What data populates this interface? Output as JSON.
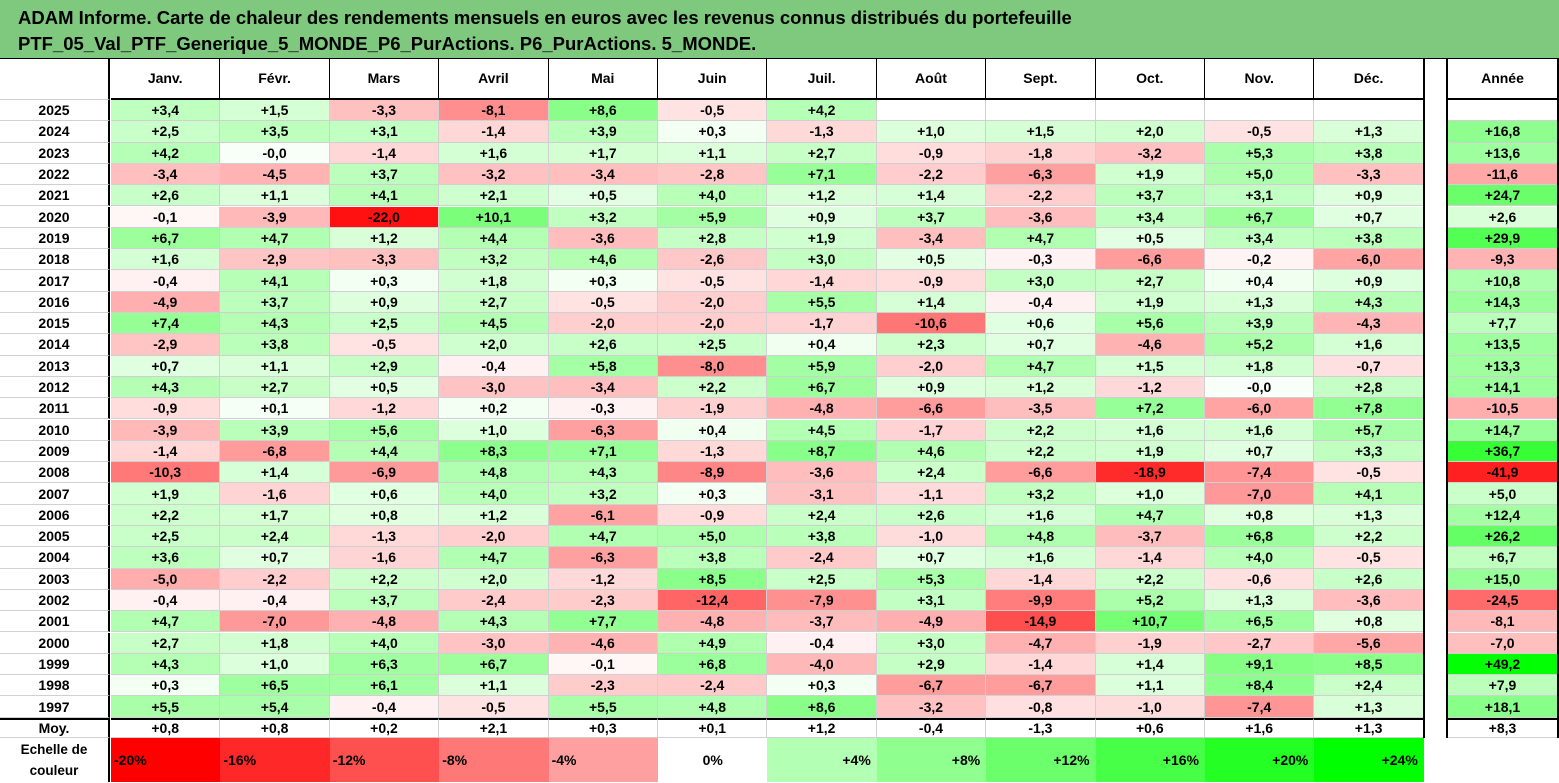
{
  "title": {
    "line1": "ADAM Informe. Carte de chaleur des rendements mensuels en euros avec les revenus connus distribués du portefeuille",
    "line2": "PTF_05_Val_PTF_Generique_5_MONDE_P6_PurActions. P6_PurActions. 5_MONDE."
  },
  "chart_data": {
    "type": "heatmap",
    "months": [
      "Janv.",
      "Févr.",
      "Mars",
      "Avril",
      "Mai",
      "Juin",
      "Juil.",
      "Août",
      "Sept.",
      "Oct.",
      "Nov.",
      "Déc."
    ],
    "annual_label": "Année",
    "rows": [
      {
        "year": "2025",
        "values": [
          "+3,4",
          "+1,5",
          "-3,3",
          "-8,1",
          "+8,6",
          "-0,5",
          "+4,2",
          "",
          "",
          "",
          "",
          ""
        ],
        "annual": ""
      },
      {
        "year": "2024",
        "values": [
          "+2,5",
          "+3,5",
          "+3,1",
          "-1,4",
          "+3,9",
          "+0,3",
          "-1,3",
          "+1,0",
          "+1,5",
          "+2,0",
          "-0,5",
          "+1,3"
        ],
        "annual": "+16,8"
      },
      {
        "year": "2023",
        "values": [
          "+4,2",
          "-0,0",
          "-1,4",
          "+1,6",
          "+1,7",
          "+1,1",
          "+2,7",
          "-0,9",
          "-1,8",
          "-3,2",
          "+5,3",
          "+3,8"
        ],
        "annual": "+13,6"
      },
      {
        "year": "2022",
        "values": [
          "-3,4",
          "-4,5",
          "+3,7",
          "-3,2",
          "-3,4",
          "-2,8",
          "+7,1",
          "-2,2",
          "-6,3",
          "+1,9",
          "+5,0",
          "-3,3"
        ],
        "annual": "-11,6"
      },
      {
        "year": "2021",
        "values": [
          "+2,6",
          "+1,1",
          "+4,1",
          "+2,1",
          "+0,5",
          "+4,0",
          "+1,2",
          "+1,4",
          "-2,2",
          "+3,7",
          "+3,1",
          "+0,9"
        ],
        "annual": "+24,7"
      },
      {
        "year": "2020",
        "values": [
          "-0,1",
          "-3,9",
          "-22,0",
          "+10,1",
          "+3,2",
          "+5,9",
          "+0,9",
          "+3,7",
          "-3,6",
          "+3,4",
          "+6,7",
          "+0,7"
        ],
        "annual": "+2,6"
      },
      {
        "year": "2019",
        "values": [
          "+6,7",
          "+4,7",
          "+1,2",
          "+4,4",
          "-3,6",
          "+2,8",
          "+1,9",
          "-3,4",
          "+4,7",
          "+0,5",
          "+3,4",
          "+3,8"
        ],
        "annual": "+29,9"
      },
      {
        "year": "2018",
        "values": [
          "+1,6",
          "-2,9",
          "-3,3",
          "+3,2",
          "+4,6",
          "-2,6",
          "+3,0",
          "+0,5",
          "-0,3",
          "-6,6",
          "-0,2",
          "-6,0"
        ],
        "annual": "-9,3"
      },
      {
        "year": "2017",
        "values": [
          "-0,4",
          "+4,1",
          "+0,3",
          "+1,8",
          "+0,3",
          "-0,5",
          "-1,4",
          "-0,9",
          "+3,0",
          "+2,7",
          "+0,4",
          "+0,9"
        ],
        "annual": "+10,8"
      },
      {
        "year": "2016",
        "values": [
          "-4,9",
          "+3,7",
          "+0,9",
          "+2,7",
          "-0,5",
          "-2,0",
          "+5,5",
          "+1,4",
          "-0,4",
          "+1,9",
          "+1,3",
          "+4,3"
        ],
        "annual": "+14,3"
      },
      {
        "year": "2015",
        "values": [
          "+7,4",
          "+4,3",
          "+2,5",
          "+4,5",
          "-2,0",
          "-2,0",
          "-1,7",
          "-10,6",
          "+0,6",
          "+5,6",
          "+3,9",
          "-4,3"
        ],
        "annual": "+7,7"
      },
      {
        "year": "2014",
        "values": [
          "-2,9",
          "+3,8",
          "-0,5",
          "+2,0",
          "+2,6",
          "+2,5",
          "+0,4",
          "+2,3",
          "+0,7",
          "-4,6",
          "+5,2",
          "+1,6"
        ],
        "annual": "+13,5"
      },
      {
        "year": "2013",
        "values": [
          "+0,7",
          "+1,1",
          "+2,9",
          "-0,4",
          "+5,8",
          "-8,0",
          "+5,9",
          "-2,0",
          "+4,7",
          "+1,5",
          "+1,8",
          "-0,7"
        ],
        "annual": "+13,3"
      },
      {
        "year": "2012",
        "values": [
          "+4,3",
          "+2,7",
          "+0,5",
          "-3,0",
          "-3,4",
          "+2,2",
          "+6,7",
          "+0,9",
          "+1,2",
          "-1,2",
          "-0,0",
          "+2,8"
        ],
        "annual": "+14,1"
      },
      {
        "year": "2011",
        "values": [
          "-0,9",
          "+0,1",
          "-1,2",
          "+0,2",
          "-0,3",
          "-1,9",
          "-4,8",
          "-6,6",
          "-3,5",
          "+7,2",
          "-6,0",
          "+7,8"
        ],
        "annual": "-10,5"
      },
      {
        "year": "2010",
        "values": [
          "-3,9",
          "+3,9",
          "+5,6",
          "+1,0",
          "-6,3",
          "+0,4",
          "+4,5",
          "-1,7",
          "+2,2",
          "+1,6",
          "+1,6",
          "+5,7"
        ],
        "annual": "+14,7"
      },
      {
        "year": "2009",
        "values": [
          "-1,4",
          "-6,8",
          "+4,4",
          "+8,3",
          "+7,1",
          "-1,3",
          "+8,7",
          "+4,6",
          "+2,2",
          "+1,9",
          "+0,7",
          "+3,3"
        ],
        "annual": "+36,7"
      },
      {
        "year": "2008",
        "values": [
          "-10,3",
          "+1,4",
          "-6,9",
          "+4,8",
          "+4,3",
          "-8,9",
          "-3,6",
          "+2,4",
          "-6,6",
          "-18,9",
          "-7,4",
          "-0,5"
        ],
        "annual": "-41,9"
      },
      {
        "year": "2007",
        "values": [
          "+1,9",
          "-1,6",
          "+0,6",
          "+4,0",
          "+3,2",
          "+0,3",
          "-3,1",
          "-1,1",
          "+3,2",
          "+1,0",
          "-7,0",
          "+4,1"
        ],
        "annual": "+5,0"
      },
      {
        "year": "2006",
        "values": [
          "+2,2",
          "+1,7",
          "+0,8",
          "+1,2",
          "-6,1",
          "-0,9",
          "+2,4",
          "+2,6",
          "+1,6",
          "+4,7",
          "+0,8",
          "+1,3"
        ],
        "annual": "+12,4"
      },
      {
        "year": "2005",
        "values": [
          "+2,5",
          "+2,4",
          "-1,3",
          "-2,0",
          "+4,7",
          "+5,0",
          "+3,8",
          "-1,0",
          "+4,8",
          "-3,7",
          "+6,8",
          "+2,2"
        ],
        "annual": "+26,2"
      },
      {
        "year": "2004",
        "values": [
          "+3,6",
          "+0,7",
          "-1,6",
          "+4,7",
          "-6,3",
          "+3,8",
          "-2,4",
          "+0,7",
          "+1,6",
          "-1,4",
          "+4,0",
          "-0,5"
        ],
        "annual": "+6,7"
      },
      {
        "year": "2003",
        "values": [
          "-5,0",
          "-2,2",
          "+2,2",
          "+2,0",
          "-1,2",
          "+8,5",
          "+2,5",
          "+5,3",
          "-1,4",
          "+2,2",
          "-0,6",
          "+2,6"
        ],
        "annual": "+15,0"
      },
      {
        "year": "2002",
        "values": [
          "-0,4",
          "-0,4",
          "+3,7",
          "-2,4",
          "-2,3",
          "-12,4",
          "-7,9",
          "+3,1",
          "-9,9",
          "+5,2",
          "+1,3",
          "-3,6"
        ],
        "annual": "-24,5"
      },
      {
        "year": "2001",
        "values": [
          "+4,7",
          "-7,0",
          "-4,8",
          "+4,3",
          "+7,7",
          "-4,8",
          "-3,7",
          "-4,9",
          "-14,9",
          "+10,7",
          "+6,5",
          "+0,8"
        ],
        "annual": "-8,1"
      },
      {
        "year": "2000",
        "values": [
          "+2,7",
          "+1,8",
          "+4,0",
          "-3,0",
          "-4,6",
          "+4,9",
          "-0,4",
          "+3,0",
          "-4,7",
          "-1,9",
          "-2,7",
          "-5,6"
        ],
        "annual": "-7,0"
      },
      {
        "year": "1999",
        "values": [
          "+4,3",
          "+1,0",
          "+6,3",
          "+6,7",
          "-0,1",
          "+6,8",
          "-4,0",
          "+2,9",
          "-1,4",
          "+1,4",
          "+9,1",
          "+8,5"
        ],
        "annual": "+49,2"
      },
      {
        "year": "1998",
        "values": [
          "+0,3",
          "+6,5",
          "+6,1",
          "+1,1",
          "-2,3",
          "-2,4",
          "+0,3",
          "-6,7",
          "-6,7",
          "+1,1",
          "+8,4",
          "+2,4"
        ],
        "annual": "+7,9"
      },
      {
        "year": "1997",
        "values": [
          "+5,5",
          "+5,4",
          "-0,4",
          "-0,5",
          "+5,5",
          "+4,8",
          "+8,6",
          "-3,2",
          "-0,8",
          "-1,0",
          "-7,4",
          "+1,3"
        ],
        "annual": "+18,1"
      }
    ],
    "average": {
      "label": "Moy.",
      "values": [
        "+0,8",
        "+0,8",
        "+0,2",
        "+2,1",
        "+0,3",
        "+0,1",
        "+1,2",
        "-0,4",
        "-1,3",
        "+0,6",
        "+1,6",
        "+1,3"
      ],
      "annual": "+8,3"
    },
    "color_scale": {
      "label_line1": "Echelle de",
      "label_line2": "couleur",
      "stops": [
        "-20%",
        "-16%",
        "-12%",
        "-8%",
        "-4%",
        "0%",
        "+4%",
        "+8%",
        "+12%",
        "+16%",
        "+20%",
        "+24%"
      ],
      "stop_values": [
        -20,
        -16,
        -12,
        -8,
        -4,
        0,
        4,
        8,
        12,
        16,
        20,
        24
      ]
    },
    "colors": {
      "negative_max": "#ff0000",
      "positive_max": "#00ff00",
      "neutral": "#ffffff"
    }
  }
}
